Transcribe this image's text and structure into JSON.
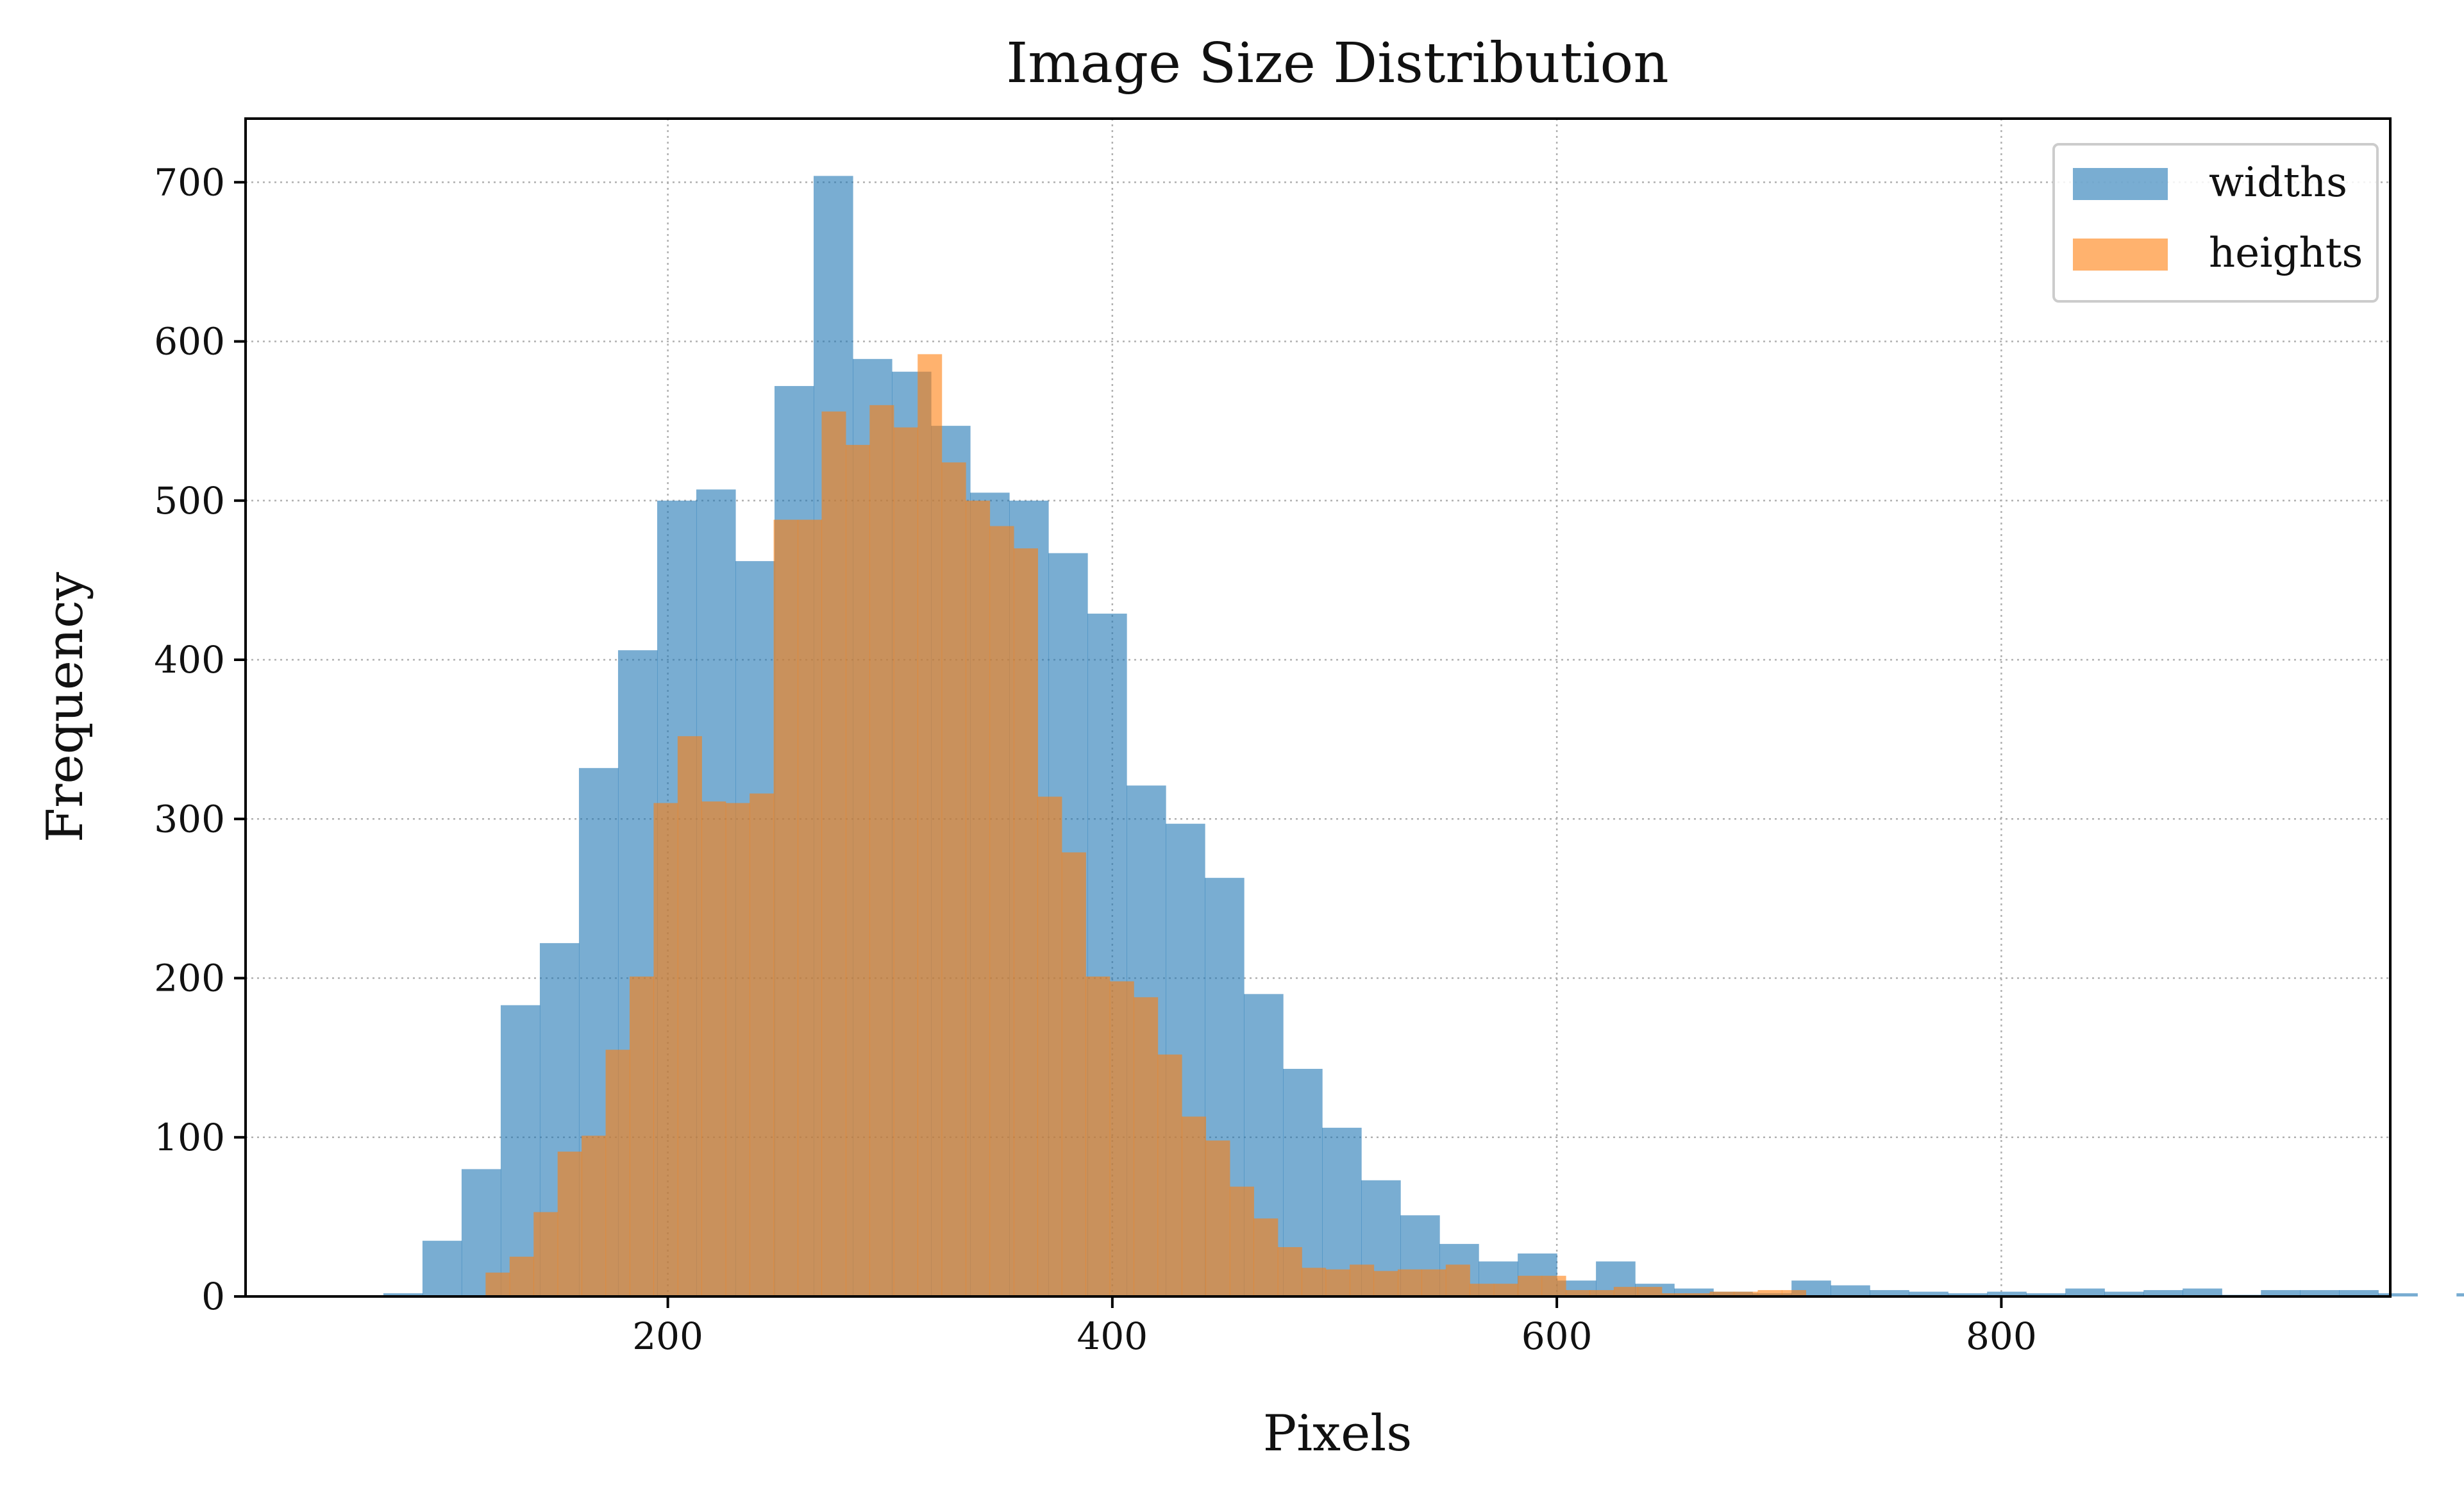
{
  "chart_data": {
    "type": "histogram",
    "title": "Image Size Distribution",
    "xlabel": "Pixels",
    "ylabel": "Frequency",
    "xlim": [
      10,
      975
    ],
    "ylim": [
      0,
      740
    ],
    "xticks": [
      200,
      400,
      600,
      800
    ],
    "yticks": [
      0,
      100,
      200,
      300,
      400,
      500,
      600,
      700
    ],
    "grid": true,
    "legend_position": "top-right",
    "series": [
      {
        "name": "widths",
        "color": "#1f77b4",
        "opacity": 0.6,
        "bin_start": 72,
        "bin_width": 17.6,
        "counts": [
          2,
          35,
          80,
          183,
          222,
          332,
          406,
          500,
          507,
          462,
          572,
          704,
          589,
          581,
          547,
          505,
          500,
          467,
          429,
          321,
          297,
          263,
          190,
          143,
          106,
          73,
          51,
          33,
          22,
          27,
          10,
          22,
          8,
          5,
          3,
          2,
          10,
          7,
          4,
          3,
          2,
          3,
          2,
          5,
          3,
          4,
          5,
          1,
          4,
          4,
          4,
          2,
          0,
          2,
          2
        ]
      },
      {
        "name": "heights",
        "color": "#ff7f0e",
        "opacity": 0.6,
        "bin_start": 118,
        "bin_width": 10.8,
        "counts": [
          15,
          25,
          53,
          91,
          101,
          155,
          201,
          310,
          352,
          311,
          310,
          316,
          488,
          488,
          556,
          535,
          560,
          546,
          592,
          524,
          500,
          484,
          470,
          314,
          279,
          201,
          198,
          188,
          152,
          113,
          98,
          69,
          49,
          31,
          18,
          17,
          20,
          16,
          17,
          17,
          20,
          8,
          8,
          13,
          13,
          4,
          4,
          6,
          6,
          2,
          2,
          3,
          3,
          4,
          4
        ]
      }
    ]
  }
}
